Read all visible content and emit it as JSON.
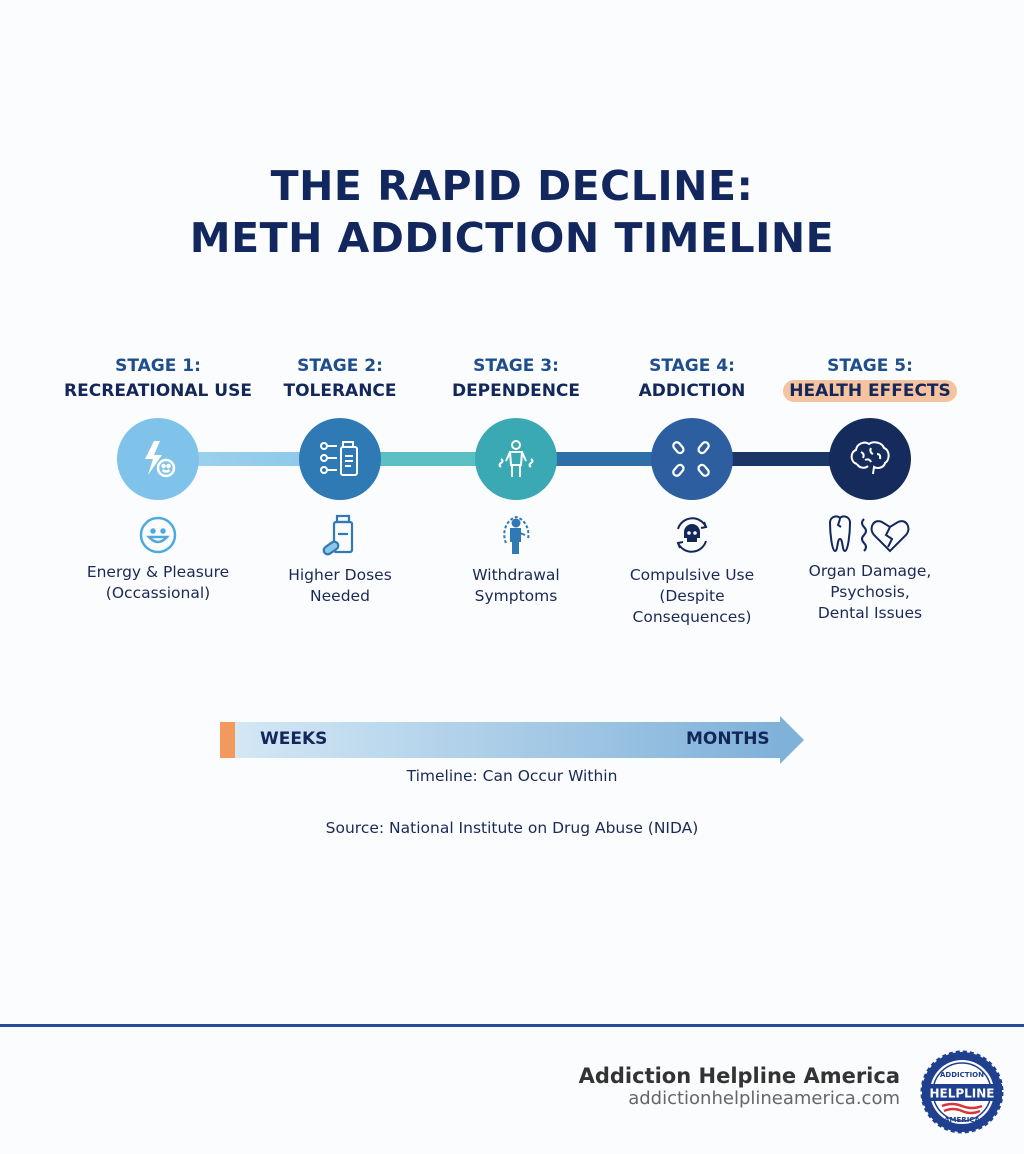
{
  "title": {
    "line1": "THE RAPID DECLINE:",
    "line2": "METH ADDICTION TIMELINE"
  },
  "stages": [
    {
      "label": "STAGE 1:",
      "name": "RECREATIONAL USE",
      "icon": "lightning-smile-icon",
      "sub_icon": "smiley-icon",
      "desc": [
        "Energy & Pleasure",
        "(Occassional)"
      ],
      "color": "#7fc3ea"
    },
    {
      "label": "STAGE 2:",
      "name": "TOLERANCE",
      "icon": "pill-bottle-syringes-icon",
      "sub_icon": "pill-bottle-icon",
      "desc": [
        "Higher Doses",
        "Needed"
      ],
      "color": "#2f79b5"
    },
    {
      "label": "STAGE 3:",
      "name": "DEPENDENCE",
      "icon": "person-shaking-icon",
      "sub_icon": "person-withdrawal-icon",
      "desc": [
        "Withdrawal",
        "Symptoms"
      ],
      "color": "#3aa9b4"
    },
    {
      "label": "STAGE 4:",
      "name": "ADDICTION",
      "icon": "chains-icon",
      "sub_icon": "skull-cycle-icon",
      "desc": [
        "Compulsive Use",
        "(Despite",
        "Consequences)"
      ],
      "color": "#2c5ea0"
    },
    {
      "label": "STAGE 5:",
      "name": "HEALTH EFFECTS",
      "icon": "brain-icon",
      "sub_icon": "tooth-heartbreak-icon",
      "desc": [
        "Organ Damage,",
        "Psychosis,",
        "Dental Issues"
      ],
      "color": "#152b5c",
      "highlight": "#f6c3a0"
    }
  ],
  "timeline": {
    "start": "WEEKS",
    "end": "MONTHS",
    "caption": "Timeline: Can Occur Within"
  },
  "source": "Source: National Institute on Drug Abuse (NIDA)",
  "footer": {
    "brand": "Addiction Helpline America",
    "url": "addictionhelplineamerica.com",
    "logo_text": [
      "ADDICTION",
      "HELPLINE",
      "AMERICA"
    ]
  }
}
